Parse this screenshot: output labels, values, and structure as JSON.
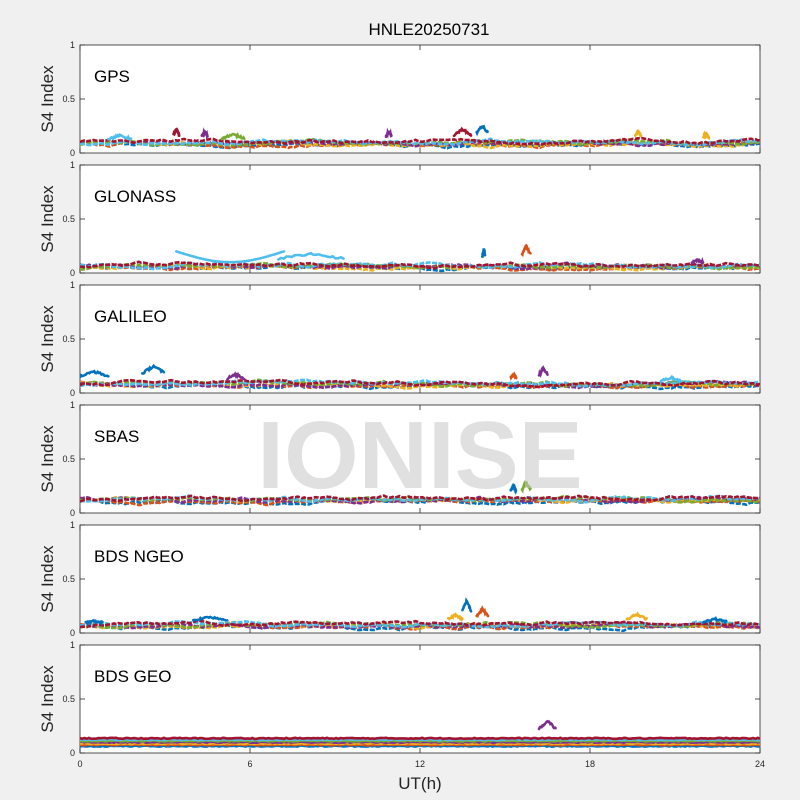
{
  "chart_data": {
    "type": "scatter",
    "title": "HNLE20250731",
    "xlabel": "UT(h)",
    "ylabel": "S4 Index",
    "xlim": [
      0,
      24
    ],
    "ylim": [
      0,
      1
    ],
    "xticks": [
      "0",
      "6",
      "12",
      "18",
      "24"
    ],
    "yticks": [
      "0",
      "0.5",
      "1"
    ],
    "watermark": "IONISE",
    "series_colors": [
      "#0072BD",
      "#D95319",
      "#EDB120",
      "#7E2F8E",
      "#77AC30",
      "#4DBEEE",
      "#A2142F"
    ],
    "panels": [
      {
        "label": "GPS",
        "baseline": 0.09,
        "features": [
          {
            "x_start": 14.0,
            "x_end": 14.4,
            "y": 0.25,
            "color": "#0072BD"
          },
          {
            "x_start": 13.2,
            "x_end": 13.8,
            "y": 0.22,
            "color": "#A2142F"
          },
          {
            "x_start": 3.3,
            "x_end": 3.5,
            "y": 0.22,
            "color": "#A2142F"
          },
          {
            "x_start": 4.3,
            "x_end": 4.5,
            "y": 0.2,
            "color": "#7E2F8E"
          },
          {
            "x_start": 10.8,
            "x_end": 11.0,
            "y": 0.2,
            "color": "#7E2F8E"
          },
          {
            "x_start": 5.0,
            "x_end": 5.8,
            "y": 0.17,
            "color": "#77AC30"
          },
          {
            "x_start": 1.0,
            "x_end": 1.8,
            "y": 0.16,
            "color": "#4DBEEE"
          },
          {
            "x_start": 19.6,
            "x_end": 19.8,
            "y": 0.2,
            "color": "#EDB120"
          },
          {
            "x_start": 22.0,
            "x_end": 22.2,
            "y": 0.18,
            "color": "#EDB120"
          }
        ]
      },
      {
        "label": "GLONASS",
        "baseline": 0.06,
        "features": [
          {
            "x_start": 3.4,
            "x_end": 7.2,
            "y": 0.2,
            "color": "#4DBEEE",
            "curve": "u"
          },
          {
            "x_start": 7.0,
            "x_end": 9.3,
            "y": 0.18,
            "color": "#4DBEEE"
          },
          {
            "x_start": 14.2,
            "x_end": 14.3,
            "y": 0.22,
            "color": "#0072BD"
          },
          {
            "x_start": 15.6,
            "x_end": 15.9,
            "y": 0.25,
            "color": "#D95319"
          },
          {
            "x_start": 21.6,
            "x_end": 22.0,
            "y": 0.12,
            "color": "#7E2F8E"
          }
        ]
      },
      {
        "label": "GALILEO",
        "baseline": 0.08,
        "features": [
          {
            "x_start": 0.0,
            "x_end": 1.0,
            "y": 0.2,
            "color": "#0072BD"
          },
          {
            "x_start": 2.2,
            "x_end": 3.0,
            "y": 0.25,
            "color": "#0072BD"
          },
          {
            "x_start": 16.2,
            "x_end": 16.5,
            "y": 0.23,
            "color": "#7E2F8E"
          },
          {
            "x_start": 15.2,
            "x_end": 15.4,
            "y": 0.18,
            "color": "#D95319"
          },
          {
            "x_start": 5.2,
            "x_end": 5.8,
            "y": 0.17,
            "color": "#7E2F8E"
          },
          {
            "x_start": 20.5,
            "x_end": 21.2,
            "y": 0.14,
            "color": "#4DBEEE"
          }
        ]
      },
      {
        "label": "SBAS",
        "baseline": 0.12,
        "features": [
          {
            "x_start": 15.2,
            "x_end": 15.4,
            "y": 0.26,
            "color": "#0072BD"
          },
          {
            "x_start": 15.6,
            "x_end": 15.9,
            "y": 0.28,
            "color": "#77AC30"
          }
        ]
      },
      {
        "label": "BDS NGEO",
        "baseline": 0.07,
        "features": [
          {
            "x_start": 13.5,
            "x_end": 13.8,
            "y": 0.3,
            "color": "#0072BD"
          },
          {
            "x_start": 14.0,
            "x_end": 14.4,
            "y": 0.22,
            "color": "#D95319"
          },
          {
            "x_start": 13.0,
            "x_end": 13.5,
            "y": 0.17,
            "color": "#EDB120"
          },
          {
            "x_start": 4.0,
            "x_end": 5.2,
            "y": 0.15,
            "color": "#0072BD"
          },
          {
            "x_start": 19.3,
            "x_end": 20.0,
            "y": 0.17,
            "color": "#EDB120"
          },
          {
            "x_start": 22.0,
            "x_end": 22.8,
            "y": 0.13,
            "color": "#0072BD"
          },
          {
            "x_start": 0.2,
            "x_end": 0.8,
            "y": 0.11,
            "color": "#0072BD"
          }
        ]
      },
      {
        "label": "BDS GEO",
        "baseline": 0.1,
        "flat": true,
        "features": [
          {
            "x_start": 16.2,
            "x_end": 16.8,
            "y": 0.3,
            "color": "#7E2F8E"
          }
        ]
      }
    ]
  }
}
